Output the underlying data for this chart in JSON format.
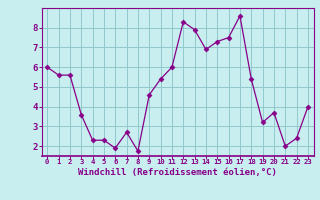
{
  "x": [
    0,
    1,
    2,
    3,
    4,
    5,
    6,
    7,
    8,
    9,
    10,
    11,
    12,
    13,
    14,
    15,
    16,
    17,
    18,
    19,
    20,
    21,
    22,
    23
  ],
  "y": [
    6.0,
    5.6,
    5.6,
    3.6,
    2.3,
    2.3,
    1.9,
    2.7,
    1.75,
    4.6,
    5.4,
    6.0,
    8.3,
    7.9,
    6.9,
    7.3,
    7.5,
    8.6,
    5.4,
    3.2,
    3.7,
    2.0,
    2.4,
    4.0
  ],
  "line_color": "#880088",
  "marker": "D",
  "marker_size": 2.5,
  "bg_color": "#c8eef0",
  "grid_color": "#90c8cc",
  "xlabel": "Windchill (Refroidissement éolien,°C)",
  "xlabel_color": "#880088",
  "tick_color": "#880088",
  "spine_color": "#880088",
  "ylim": [
    1.5,
    9.0
  ],
  "xlim": [
    -0.5,
    23.5
  ],
  "yticks": [
    2,
    3,
    4,
    5,
    6,
    7,
    8
  ],
  "xticks": [
    0,
    1,
    2,
    3,
    4,
    5,
    6,
    7,
    8,
    9,
    10,
    11,
    12,
    13,
    14,
    15,
    16,
    17,
    18,
    19,
    20,
    21,
    22,
    23
  ],
  "figsize": [
    3.2,
    2.0
  ],
  "dpi": 100
}
